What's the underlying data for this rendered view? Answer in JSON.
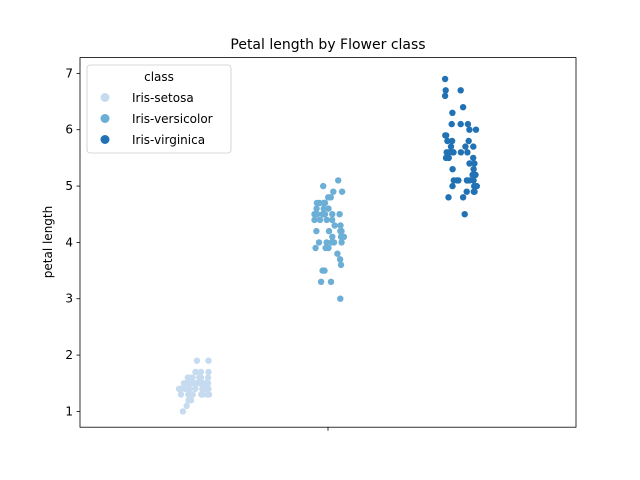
{
  "chart_data": {
    "type": "scatter",
    "title": "Petal length by Flower class",
    "xlabel": "",
    "ylabel": "petal length",
    "ylim": [
      0.72,
      7.28
    ],
    "yticks": [
      1,
      2,
      3,
      4,
      5,
      6,
      7
    ],
    "grid": false,
    "legend": {
      "title": "class",
      "position": "top-left"
    },
    "series": [
      {
        "name": "Iris-setosa",
        "color": "#c6dbef",
        "values": [
          1.4,
          1.4,
          1.3,
          1.5,
          1.4,
          1.7,
          1.4,
          1.5,
          1.4,
          1.5,
          1.5,
          1.6,
          1.4,
          1.1,
          1.2,
          1.5,
          1.3,
          1.4,
          1.7,
          1.5,
          1.7,
          1.5,
          1.0,
          1.7,
          1.9,
          1.6,
          1.6,
          1.5,
          1.4,
          1.6,
          1.6,
          1.5,
          1.5,
          1.4,
          1.5,
          1.2,
          1.3,
          1.5,
          1.3,
          1.5,
          1.3,
          1.3,
          1.3,
          1.6,
          1.9,
          1.4,
          1.6,
          1.4,
          1.5,
          1.4
        ]
      },
      {
        "name": "Iris-versicolor",
        "color": "#6baed6",
        "values": [
          4.7,
          4.5,
          4.9,
          4.0,
          4.6,
          4.5,
          4.7,
          3.3,
          4.6,
          3.9,
          3.5,
          4.2,
          4.0,
          4.7,
          3.6,
          4.4,
          4.5,
          4.1,
          4.5,
          3.9,
          4.8,
          4.0,
          4.9,
          4.7,
          4.3,
          4.4,
          4.8,
          5.0,
          4.5,
          3.5,
          3.8,
          3.7,
          3.9,
          5.1,
          4.5,
          4.5,
          4.7,
          4.4,
          4.1,
          4.0,
          4.4,
          4.6,
          4.0,
          3.3,
          4.2,
          4.2,
          4.2,
          4.3,
          3.0,
          4.1
        ]
      },
      {
        "name": "Iris-virginica",
        "color": "#2171b5",
        "values": [
          6.0,
          5.1,
          5.9,
          5.6,
          5.8,
          6.6,
          4.5,
          6.3,
          5.8,
          6.1,
          5.1,
          5.3,
          5.5,
          5.0,
          5.1,
          5.3,
          5.5,
          6.7,
          6.9,
          5.0,
          5.7,
          4.9,
          6.7,
          4.9,
          5.7,
          6.0,
          4.8,
          4.9,
          5.6,
          5.8,
          6.1,
          6.4,
          5.6,
          5.1,
          5.6,
          6.1,
          5.6,
          5.5,
          4.8,
          5.4,
          5.6,
          5.1,
          5.1,
          5.9,
          5.7,
          5.2,
          5.0,
          5.2,
          5.4,
          5.1
        ]
      }
    ]
  }
}
